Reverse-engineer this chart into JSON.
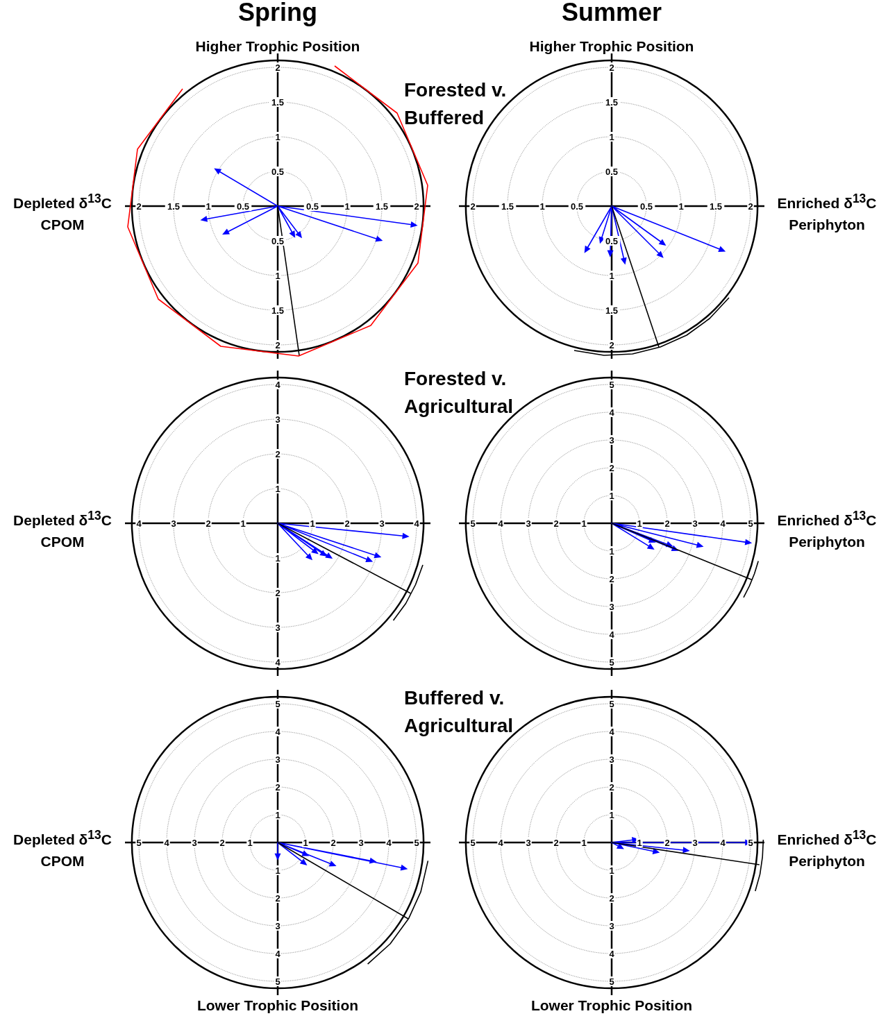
{
  "chart_data": [
    {
      "type": "scatter",
      "title": "Spring",
      "subtitle": "Forested v. Buffered",
      "ylabel": "Higher Trophic Position",
      "xlabel": "Depleted δ$^{13}$C CPOM",
      "xlim": [
        -2.2,
        2.2
      ],
      "ylim": [
        -2.2,
        2.2
      ],
      "xticks": [
        {
          "value": -2,
          "label": "2"
        },
        {
          "value": -1.5,
          "label": "1.5"
        },
        {
          "value": -1,
          "label": "1"
        },
        {
          "value": -0.5,
          "label": "0.5"
        },
        0.5,
        1,
        1.5,
        2
      ],
      "yticks": [
        {
          "value": -2,
          "label": "2"
        },
        {
          "value": -1.5,
          "label": "1.5"
        },
        {
          "value": -1,
          "label": "1"
        },
        {
          "value": -0.5,
          "label": "0.5"
        },
        0.5,
        1,
        1.5,
        2
      ],
      "series": [
        {
          "color": "#0000ff",
          "x": [
            -0.86,
            -1.05,
            -0.74,
            0.22,
            0.31,
            1.45,
            1.95
          ],
          "values": [
            0.51,
            -0.19,
            -0.38,
            -0.4,
            -0.41,
            -0.48,
            -0.27
          ]
        },
        {
          "type": "line",
          "color": "#0000ff",
          "x": [
            0,
            -0.86,
            0,
            -1.05,
            0,
            -0.74,
            0,
            0.22,
            0,
            0.31,
            0,
            1.45,
            0,
            1.95
          ],
          "values": [
            0,
            0.51,
            0,
            -0.19,
            0,
            -0.38,
            0,
            -0.4,
            0,
            -0.41,
            0,
            -0.48,
            0,
            -0.27
          ]
        },
        {
          "type": "line",
          "color": "#000000",
          "x": [
            0,
            0.31
          ],
          "values": [
            0,
            -2.15
          ]
        },
        {
          "type": "line",
          "color": "#ff0000",
          "x": [
            0.82,
            1.72,
            2.16,
            2.02,
            1.34,
            0.3,
            -0.82,
            -1.72,
            -2.16,
            -2.02,
            -1.37
          ],
          "values": [
            2.02,
            1.34,
            0.3,
            -0.82,
            -1.72,
            -2.16,
            -2.02,
            -1.34,
            -0.3,
            0.82,
            1.69
          ]
        }
      ]
    },
    {
      "type": "scatter",
      "title": "Summer",
      "ylabel": "Higher Trophic Position",
      "xlabel": "Enriched δ$^{13}$C Periphyton",
      "xlim": [
        -2.2,
        2.2
      ],
      "ylim": [
        -2.2,
        2.2
      ],
      "xticks": [
        {
          "value": -2,
          "label": "2"
        },
        {
          "value": -1.5,
          "label": "1.5"
        },
        {
          "value": -1,
          "label": "1"
        },
        {
          "value": -0.5,
          "label": "0.5"
        },
        0.5,
        1,
        1.5,
        2
      ],
      "yticks": [
        {
          "value": -2,
          "label": "2"
        },
        {
          "value": -1.5,
          "label": "1.5"
        },
        {
          "value": -1,
          "label": "1"
        },
        {
          "value": -0.5,
          "label": "0.5"
        },
        0.5,
        1,
        1.5,
        2
      ],
      "series": [
        {
          "color": "#0000ff",
          "x": [
            -0.36,
            -0.15,
            -0.02,
            0.18,
            0.73,
            0.7,
            1.58
          ],
          "values": [
            -0.62,
            -0.48,
            -0.67,
            -0.78,
            -0.53,
            -0.7,
            -0.63
          ]
        },
        {
          "type": "line",
          "color": "#0000ff",
          "x": [
            0,
            -0.36,
            0,
            -0.15,
            0,
            -0.02,
            0,
            0.18,
            0,
            0.73,
            0,
            0.7,
            0,
            1.58
          ],
          "values": [
            0,
            -0.62,
            0,
            -0.48,
            0,
            -0.67,
            0,
            -0.78,
            0,
            -0.53,
            0,
            -0.7,
            0,
            -0.63
          ]
        },
        {
          "type": "line",
          "color": "#000000",
          "x": [
            0,
            0.68
          ],
          "values": [
            0,
            -2.03
          ]
        },
        {
          "type": "line",
          "color": "#000000",
          "x": [
            1.69,
            1.41,
            1.08,
            0.7,
            0.3,
            -0.11,
            -0.54
          ],
          "values": [
            -1.32,
            -1.62,
            -1.86,
            -2.03,
            -2.13,
            -2.15,
            -2.08
          ]
        }
      ]
    },
    {
      "type": "scatter",
      "subtitle": "Forested v. Agricultural",
      "xlabel": "Depleted δ$^{13}$C CPOM",
      "xlim": [
        -4.4,
        4.4
      ],
      "ylim": [
        -4.4,
        4.4
      ],
      "xticks": [
        {
          "value": -4,
          "label": "4"
        },
        {
          "value": -3,
          "label": "3"
        },
        {
          "value": -2,
          "label": "2"
        },
        {
          "value": -1,
          "label": "1"
        },
        1,
        2,
        3,
        4
      ],
      "yticks": [
        {
          "value": -4,
          "label": "4"
        },
        {
          "value": -3,
          "label": "3"
        },
        {
          "value": -2,
          "label": "2"
        },
        {
          "value": -1,
          "label": "1"
        },
        1,
        2,
        3,
        4
      ],
      "series": [
        {
          "color": "#0000ff",
          "x": [
            3.66,
            2.86,
            2.62,
            1.47,
            1.31,
            1.07,
            0.91
          ],
          "values": [
            -0.37,
            -0.94,
            -1.06,
            -0.95,
            -0.88,
            -0.81,
            -0.97
          ]
        },
        {
          "type": "line",
          "color": "#0000ff",
          "x": [
            0,
            3.66,
            0,
            2.86,
            0,
            2.62,
            0,
            1.47,
            0,
            1.31,
            0,
            1.07,
            0,
            0.91
          ],
          "values": [
            0,
            -0.37,
            0,
            -0.94,
            0,
            -1.06,
            0,
            -0.95,
            0,
            -0.88,
            0,
            -0.81,
            0,
            -0.97
          ]
        },
        {
          "type": "line",
          "color": "#000000",
          "x": [
            0,
            3.83
          ],
          "values": [
            0,
            -2.02
          ]
        },
        {
          "type": "line",
          "color": "#000000",
          "x": [
            4.18,
            3.97,
            3.69,
            3.33
          ],
          "values": [
            -1.2,
            -1.77,
            -2.31,
            -2.8
          ]
        }
      ]
    },
    {
      "type": "scatter",
      "xlabel": "Enriched δ$^{13}$C Periphyton",
      "xlim": [
        -5.5,
        5.5
      ],
      "ylim": [
        -5.5,
        5.5
      ],
      "xticks": [
        {
          "value": -5,
          "label": "5"
        },
        {
          "value": -4,
          "label": "4"
        },
        {
          "value": -3,
          "label": "3"
        },
        {
          "value": -2,
          "label": "2"
        },
        {
          "value": -1,
          "label": "1"
        },
        1,
        2,
        3,
        4,
        5
      ],
      "yticks": [
        {
          "value": -5,
          "label": "5"
        },
        {
          "value": -4,
          "label": "4"
        },
        {
          "value": -3,
          "label": "3"
        },
        {
          "value": -2,
          "label": "2"
        },
        {
          "value": -1,
          "label": "1"
        },
        1,
        2,
        3,
        4,
        5
      ],
      "series": [
        {
          "color": "#0000ff",
          "x": [
            4.89,
            3.15,
            2.26,
            2.06,
            1.44,
            1.4
          ],
          "values": [
            -0.69,
            -0.8,
            -0.93,
            -0.78,
            -0.63,
            -0.86
          ]
        },
        {
          "type": "line",
          "color": "#0000ff",
          "x": [
            0,
            4.89,
            0,
            3.15,
            0,
            2.26,
            0,
            2.06,
            0,
            1.44,
            0,
            1.4
          ],
          "values": [
            0,
            -0.69,
            0,
            -0.8,
            0,
            -0.93,
            0,
            -0.78,
            0,
            -0.63,
            0,
            -0.86
          ]
        },
        {
          "type": "line",
          "color": "#000000",
          "x": [
            0,
            5.04
          ],
          "values": [
            0,
            -2.03
          ]
        },
        {
          "type": "line",
          "color": "#000000",
          "x": [
            5.28,
            5.14,
            4.96,
            4.75
          ],
          "values": [
            -1.36,
            -1.82,
            -2.26,
            -2.67
          ]
        }
      ]
    },
    {
      "type": "scatter",
      "subtitle": "Buffered v. Agricultural",
      "annotations": [
        "Lower Trophic Position"
      ],
      "xlabel": "Depleted δ$^{13}$C CPOM",
      "xlim": [
        -5.5,
        5.5
      ],
      "ylim": [
        -5.5,
        5.5
      ],
      "xticks": [
        {
          "value": -5,
          "label": "5"
        },
        {
          "value": -4,
          "label": "4"
        },
        {
          "value": -3,
          "label": "3"
        },
        {
          "value": -2,
          "label": "2"
        },
        {
          "value": -1,
          "label": "1"
        },
        1,
        2,
        3,
        4,
        5
      ],
      "yticks": [
        {
          "value": -5,
          "label": "5"
        },
        {
          "value": -4,
          "label": "4"
        },
        {
          "value": -3,
          "label": "3"
        },
        {
          "value": -2,
          "label": "2"
        },
        {
          "value": -1,
          "label": "1"
        },
        1,
        2,
        3,
        4,
        5
      ],
      "series": [
        {
          "color": "#0000ff",
          "x": [
            4.52,
            3.4,
            1.96,
            0.93,
            0.98,
            0
          ],
          "values": [
            -0.92,
            -0.67,
            -0.79,
            -0.72,
            -0.42,
            -0.48
          ]
        },
        {
          "type": "line",
          "color": "#0000ff",
          "x": [
            0,
            4.52,
            0,
            3.4,
            0,
            1.96,
            0,
            0.93,
            0,
            0.98,
            0,
            0
          ],
          "values": [
            0,
            -0.92,
            0,
            -0.67,
            0,
            -0.79,
            0,
            -0.72,
            0,
            -0.42,
            0,
            -0.48
          ]
        },
        {
          "type": "line",
          "color": "#000000",
          "x": [
            0,
            4.7
          ],
          "values": [
            0,
            -2.75
          ]
        },
        {
          "type": "line",
          "color": "#000000",
          "x": [
            5.41,
            5.15,
            4.72,
            4.05,
            3.24
          ],
          "values": [
            -0.66,
            -1.78,
            -2.73,
            -3.65,
            -4.38
          ]
        }
      ]
    },
    {
      "type": "scatter",
      "annotations": [
        "Lower Trophic Position"
      ],
      "xlabel": "Enriched δ$^{13}$C Periphyton",
      "xlim": [
        -5.5,
        5.5
      ],
      "ylim": [
        -5.5,
        5.5
      ],
      "xticks": [
        {
          "value": -5,
          "label": "5"
        },
        {
          "value": -4,
          "label": "4"
        },
        {
          "value": -3,
          "label": "3"
        },
        {
          "value": -2,
          "label": "2"
        },
        {
          "value": -1,
          "label": "1"
        },
        1,
        2,
        3,
        4,
        5
      ],
      "yticks": [
        {
          "value": -5,
          "label": "5"
        },
        {
          "value": -4,
          "label": "4"
        },
        {
          "value": -3,
          "label": "3"
        },
        {
          "value": -2,
          "label": "2"
        },
        {
          "value": -1,
          "label": "1"
        },
        1,
        2,
        3,
        4,
        5
      ],
      "series": [
        {
          "color": "#0000ff",
          "x": [
            4.89,
            3.03,
            0.82,
            1.57,
            2.65,
            0.3
          ],
          "values": [
            0,
            0,
            0.1,
            -0.33,
            -0.28,
            -0.16
          ]
        },
        {
          "type": "line",
          "color": "#0000ff",
          "x": [
            0,
            4.89,
            0,
            3.03,
            0,
            0.82,
            0,
            1.57,
            0,
            2.65,
            0,
            0.3
          ],
          "values": [
            0,
            0,
            0,
            0,
            0,
            0.1,
            0,
            -0.33,
            0,
            -0.28,
            0,
            -0.16
          ]
        },
        {
          "type": "line",
          "color": "#000000",
          "x": [
            0,
            5.32
          ],
          "values": [
            0,
            -0.8
          ]
        },
        {
          "type": "line",
          "color": "#000000",
          "x": [
            5.46,
            5.43,
            5.34,
            5.17
          ],
          "values": [
            0.1,
            -0.52,
            -1.14,
            -1.75
          ]
        }
      ]
    }
  ]
}
